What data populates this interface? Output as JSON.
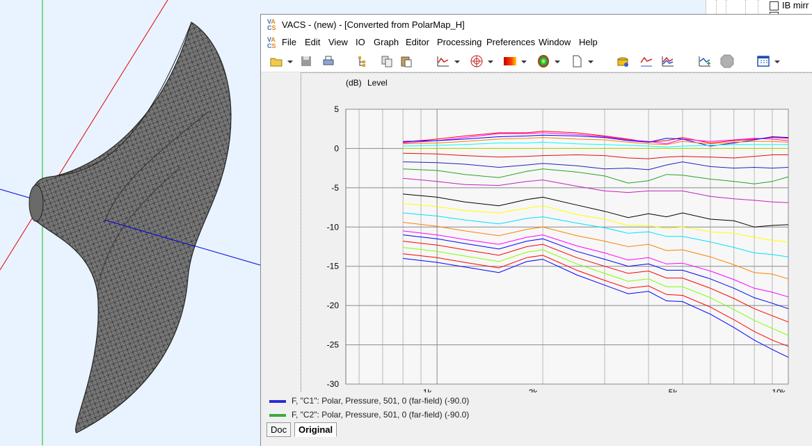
{
  "app": {
    "logo_letters": [
      "V",
      "A",
      "C",
      "S"
    ],
    "title": "VACS - (new) - [Converted from PolarMap_H]"
  },
  "tree": {
    "item_label": "IB mirr"
  },
  "menu": [
    "File",
    "Edit",
    "View",
    "IO",
    "Graph",
    "Editor",
    "Processing",
    "Preferences",
    "Window",
    "Help"
  ],
  "toolbar_icons": [
    "open-folder-icon",
    "save-icon",
    "print-icon",
    "tree-edit-icon",
    "copy-icon",
    "paste-icon",
    "line-graph-icon",
    "polar-graph-icon",
    "color-map-icon",
    "balloon-icon",
    "new-document-icon",
    "stack-icon",
    "transfer-function-icon",
    "overlay-icon",
    "add-curve-icon",
    "stop-icon",
    "window-layout-icon"
  ],
  "graph": {
    "y_unit": "(dB)",
    "y_label": "Level",
    "y_ticks": [
      "5",
      "0",
      "-5",
      "-10",
      "-15",
      "-20",
      "-25",
      "-30"
    ],
    "x_ticks": [
      "1k",
      "2k",
      "5k",
      "10k"
    ]
  },
  "legend": [
    {
      "color": "#2b2bd6",
      "text": "F, \"C1\": Polar, Pressure, 501, 0 (far-field) (-90.0)"
    },
    {
      "color": "#3fa83f",
      "text": "F, \"C2\": Polar, Pressure, 501, 0 (far-field) (-90.0)"
    }
  ],
  "tabs": [
    "Doc",
    "Original"
  ],
  "active_tab": "Original",
  "chart_data": {
    "type": "line",
    "x_scale": "log",
    "xlim": [
      550,
      10000
    ],
    "ylim": [
      -30,
      5
    ],
    "ylabel": "Level",
    "x": [
      800,
      1000,
      1200,
      1500,
      1800,
      2000,
      2500,
      3000,
      3500,
      4000,
      4500,
      5000,
      6000,
      7000,
      8000,
      9000,
      10000
    ],
    "series": [
      {
        "color": "#ff0000",
        "values": [
          0.8,
          1.2,
          1.6,
          2.0,
          2.0,
          2.2,
          2.0,
          1.6,
          1.2,
          0.8,
          1.0,
          1.4,
          0.7,
          1.0,
          1.2,
          1.4,
          1.3
        ]
      },
      {
        "color": "#ff00ff",
        "values": [
          0.7,
          1.0,
          1.4,
          1.9,
          1.9,
          2.0,
          1.8,
          1.5,
          1.1,
          0.9,
          0.6,
          1.2,
          0.9,
          1.1,
          1.3,
          1.2,
          1.0
        ]
      },
      {
        "color": "#0000ff",
        "values": [
          0.9,
          1.0,
          1.2,
          1.5,
          1.6,
          1.7,
          1.6,
          1.4,
          1.0,
          0.8,
          1.3,
          1.2,
          0.3,
          0.7,
          1.1,
          1.5,
          1.4
        ]
      },
      {
        "color": "#ff8000",
        "values": [
          0.6,
          0.7,
          0.9,
          1.2,
          1.3,
          1.4,
          1.2,
          1.1,
          0.8,
          0.6,
          0.5,
          0.9,
          0.6,
          0.8,
          0.9,
          0.9,
          0.8
        ]
      },
      {
        "color": "#00ffff",
        "values": [
          0.3,
          0.4,
          0.5,
          0.7,
          0.7,
          0.8,
          0.6,
          0.5,
          0.4,
          0.3,
          0.2,
          0.3,
          0.4,
          0.5,
          0.5,
          0.5,
          0.5
        ]
      },
      {
        "color": "#b0e000",
        "values": [
          0.0,
          0.0,
          0.0,
          0.0,
          0.0,
          0.0,
          0.0,
          0.0,
          0.0,
          0.0,
          0.0,
          0.0,
          0.0,
          0.0,
          0.0,
          0.0,
          0.0
        ]
      },
      {
        "color": "#e01010",
        "values": [
          -0.6,
          -0.7,
          -0.9,
          -1.1,
          -1.0,
          -0.9,
          -0.8,
          -0.9,
          -1.2,
          -1.3,
          -1.1,
          -1.0,
          -1.1,
          -1.2,
          -1.0,
          -0.8,
          -0.8
        ]
      },
      {
        "color": "#2020c0",
        "values": [
          -1.7,
          -1.8,
          -2.0,
          -2.4,
          -2.1,
          -1.9,
          -2.2,
          -2.6,
          -2.5,
          -2.7,
          -2.1,
          -1.7,
          -2.3,
          -2.5,
          -2.4,
          -2.5,
          -2.4
        ]
      },
      {
        "color": "#28a028",
        "values": [
          -2.6,
          -2.8,
          -3.3,
          -3.7,
          -2.9,
          -2.6,
          -3.0,
          -3.5,
          -4.4,
          -4.1,
          -3.3,
          -3.4,
          -3.9,
          -4.2,
          -4.5,
          -4.2,
          -3.6
        ]
      },
      {
        "color": "#c020c0",
        "values": [
          -3.8,
          -4.2,
          -4.6,
          -4.7,
          -4.2,
          -4.0,
          -4.8,
          -5.4,
          -5.6,
          -5.4,
          -5.4,
          -5.4,
          -6.1,
          -6.4,
          -6.6,
          -6.8,
          -6.9
        ]
      },
      {
        "color": "#000000",
        "values": [
          -5.8,
          -6.2,
          -6.8,
          -7.3,
          -6.5,
          -6.2,
          -7.2,
          -8.0,
          -8.8,
          -8.3,
          -8.7,
          -8.2,
          -9.0,
          -9.2,
          -10.0,
          -9.8,
          -9.7
        ]
      },
      {
        "color": "#ffff00",
        "values": [
          -7.0,
          -7.4,
          -7.9,
          -8.2,
          -7.6,
          -7.3,
          -8.4,
          -9.0,
          -9.8,
          -9.8,
          -10.2,
          -10.0,
          -10.6,
          -10.8,
          -11.3,
          -11.7,
          -11.9
        ]
      },
      {
        "color": "#00e0ff",
        "values": [
          -8.2,
          -8.6,
          -9.1,
          -9.6,
          -8.9,
          -8.7,
          -9.5,
          -10.1,
          -10.8,
          -10.6,
          -11.2,
          -11.2,
          -11.9,
          -12.6,
          -13.3,
          -13.5,
          -13.8
        ]
      },
      {
        "color": "#ff8000",
        "values": [
          -9.4,
          -9.9,
          -10.5,
          -11.1,
          -10.3,
          -10.0,
          -11.1,
          -11.8,
          -12.5,
          -12.2,
          -13.0,
          -12.9,
          -13.8,
          -14.8,
          -15.8,
          -16.0,
          -16.6
        ]
      },
      {
        "color": "#ff00ff",
        "values": [
          -10.5,
          -11.0,
          -11.6,
          -12.2,
          -11.3,
          -11.0,
          -12.4,
          -13.3,
          -14.2,
          -13.9,
          -14.7,
          -14.6,
          -15.6,
          -16.7,
          -17.8,
          -18.3,
          -18.9
        ]
      },
      {
        "color": "#0000ff",
        "values": [
          -11.0,
          -11.5,
          -12.1,
          -12.8,
          -11.8,
          -11.5,
          -13.1,
          -14.1,
          -15.0,
          -14.7,
          -15.5,
          -15.5,
          -16.6,
          -17.8,
          -19.0,
          -19.7,
          -20.4
        ]
      },
      {
        "color": "#ff0000",
        "values": [
          -11.8,
          -12.3,
          -12.9,
          -13.6,
          -12.5,
          -12.2,
          -13.9,
          -15.0,
          -15.9,
          -15.6,
          -16.5,
          -16.5,
          -17.8,
          -19.1,
          -20.4,
          -21.3,
          -22.1
        ]
      },
      {
        "color": "#80ff00",
        "values": [
          -12.6,
          -13.1,
          -13.7,
          -14.4,
          -13.2,
          -12.9,
          -14.7,
          -15.9,
          -16.9,
          -16.6,
          -17.6,
          -17.6,
          -19.0,
          -20.5,
          -21.9,
          -22.9,
          -23.8
        ]
      },
      {
        "color": "#ff0000",
        "values": [
          -13.4,
          -13.9,
          -14.5,
          -15.2,
          -13.9,
          -13.6,
          -15.5,
          -16.8,
          -17.8,
          -17.5,
          -18.6,
          -18.7,
          -20.2,
          -21.8,
          -23.3,
          -24.4,
          -25.2
        ]
      },
      {
        "color": "#0000ff",
        "values": [
          -14.0,
          -14.5,
          -15.1,
          -15.8,
          -14.4,
          -14.1,
          -16.1,
          -17.4,
          -18.5,
          -18.2,
          -19.4,
          -19.5,
          -21.1,
          -22.8,
          -24.4,
          -25.6,
          -26.6
        ]
      }
    ]
  }
}
